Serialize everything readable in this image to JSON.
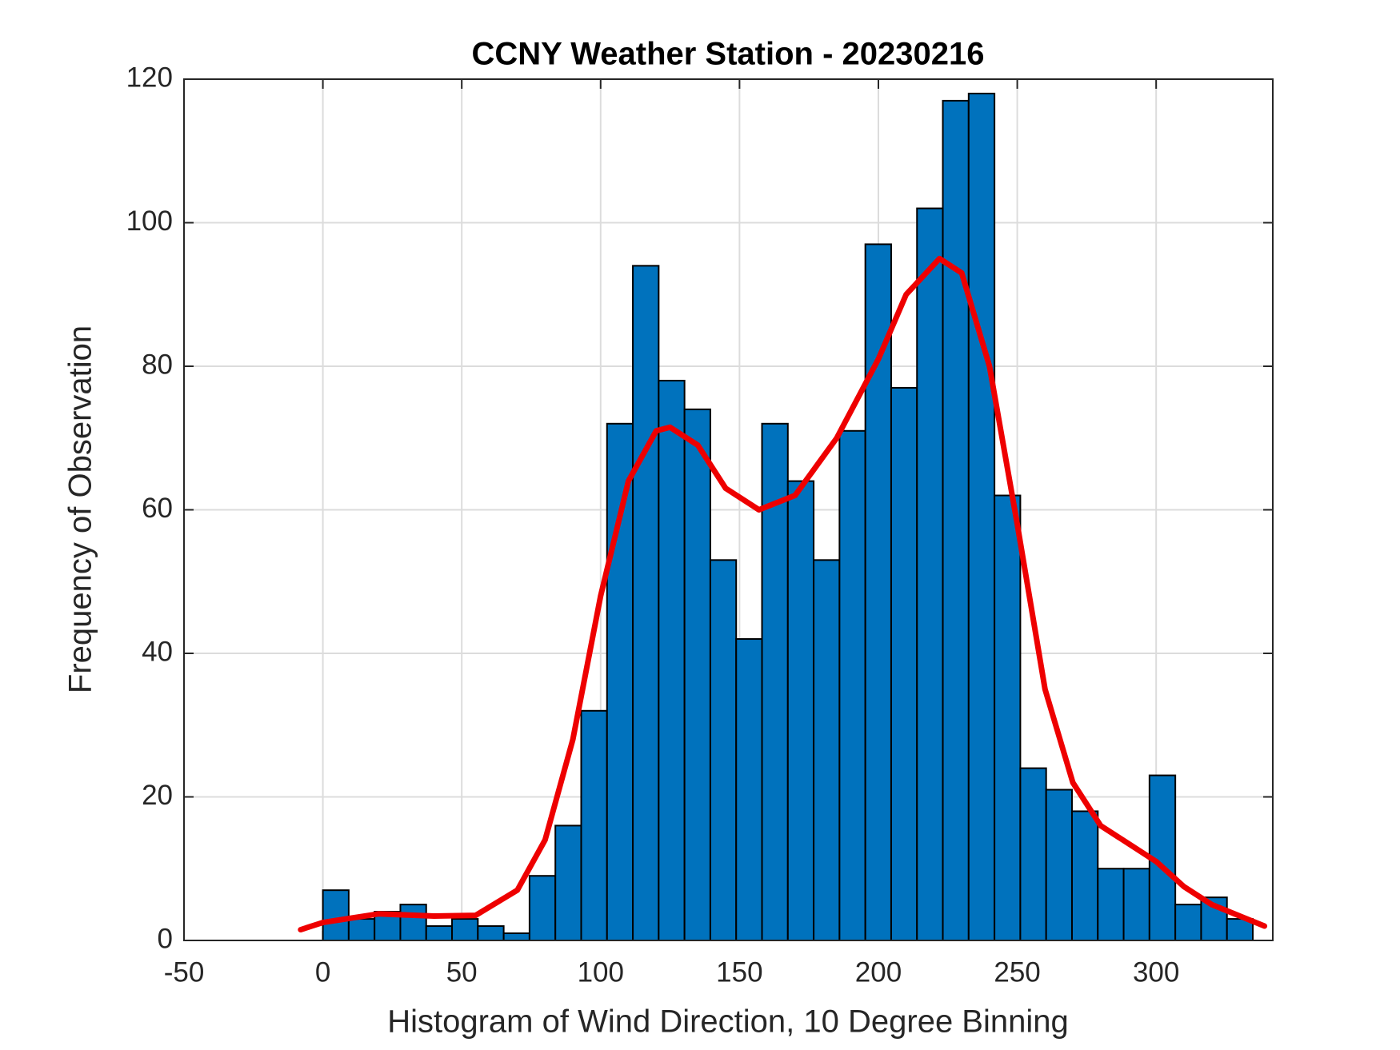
{
  "chart_data": {
    "type": "histogram",
    "title": "CCNY Weather Station - 20230216",
    "xlabel": "Histogram of Wind Direction, 10 Degree Binning",
    "ylabel": "Frequency of Observation",
    "bins": [
      0,
      9.3,
      18.6,
      27.9,
      37.2,
      46.5,
      55.8,
      65.1,
      74.4,
      83.7,
      93,
      102.3,
      111.6,
      120.9,
      130.2,
      139.5,
      148.8,
      158.1,
      167.4,
      176.7,
      186,
      195.3,
      204.6,
      213.9,
      223.2,
      232.5,
      241.8,
      251.1,
      260.4,
      269.7,
      279,
      288.3,
      297.6,
      306.9,
      316.2,
      325.5,
      334.8
    ],
    "counts": [
      7,
      3,
      4,
      5,
      2,
      3,
      2,
      1,
      9,
      16,
      32,
      72,
      94,
      78,
      74,
      53,
      42,
      72,
      64,
      53,
      71,
      97,
      77,
      102,
      117,
      118,
      62,
      24,
      21,
      18,
      10,
      10,
      23,
      5,
      6,
      3
    ],
    "color": "#0072bd",
    "curve": {
      "color": "#ee0000",
      "x": [
        -8,
        0,
        20,
        40,
        55,
        70,
        80,
        90,
        100,
        110,
        120,
        125,
        135,
        145,
        157,
        170,
        185,
        200,
        210,
        222,
        230,
        240,
        250,
        260,
        270,
        280,
        290,
        300,
        310,
        320,
        339
      ],
      "values": [
        1.5,
        2.5,
        3.7,
        3.4,
        3.5,
        7,
        14,
        28,
        48,
        64,
        71,
        71.5,
        69,
        63,
        60,
        62,
        70,
        81,
        90,
        95,
        93,
        80,
        58,
        35,
        22,
        16,
        13.5,
        11,
        7.5,
        5,
        2
      ]
    },
    "xlim": [
      -50,
      342
    ],
    "xticks": [
      -50,
      0,
      50,
      100,
      150,
      200,
      250,
      300
    ],
    "ylim": [
      0,
      120
    ],
    "yticks": [
      0,
      20,
      40,
      60,
      80,
      100,
      120
    ],
    "grid": true
  }
}
